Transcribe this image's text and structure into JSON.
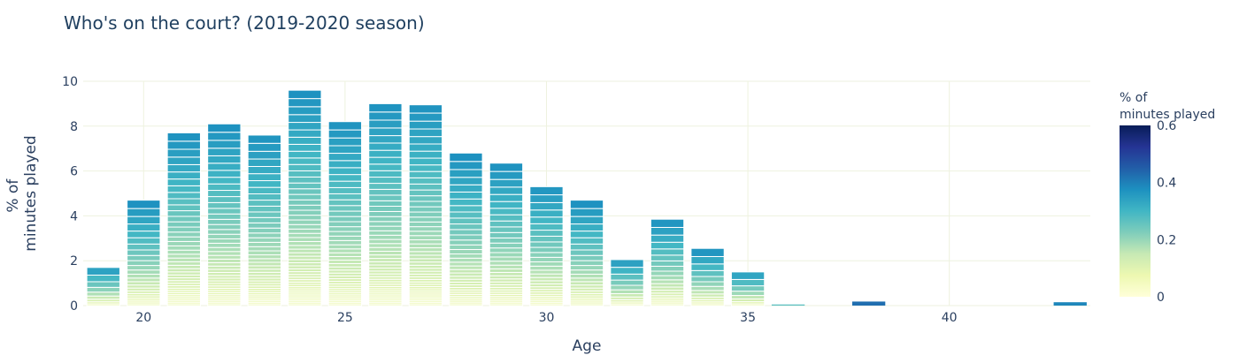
{
  "chart_data": {
    "type": "bar",
    "stacked": true,
    "title": "Who's on the court? (2019-2020 season)",
    "xlabel": "Age",
    "ylabel": [
      "% of",
      "minutes played"
    ],
    "xlim": [
      18.5,
      43.5
    ],
    "ylim": [
      0,
      10
    ],
    "xticks": [
      20,
      25,
      30,
      35,
      40
    ],
    "yticks": [
      0,
      2,
      4,
      6,
      8,
      10
    ],
    "grid": true,
    "ages": [
      19,
      20,
      21,
      22,
      23,
      24,
      25,
      26,
      27,
      28,
      29,
      30,
      31,
      32,
      33,
      34,
      35,
      36,
      38,
      43
    ],
    "totals": [
      1.7,
      4.7,
      7.7,
      8.1,
      7.6,
      9.6,
      8.2,
      9.0,
      8.95,
      6.8,
      6.35,
      5.3,
      4.7,
      2.05,
      3.85,
      2.55,
      1.5,
      0.05,
      0.18,
      0.15
    ],
    "colorbar": {
      "title": [
        "% of",
        "minutes played"
      ],
      "range": [
        0,
        0.6
      ],
      "ticks": [
        0,
        0.2,
        0.4,
        0.6
      ],
      "colorscale": [
        "#ffffd9",
        "#edf8b1",
        "#c7e9b4",
        "#7fcdbb",
        "#41b6c4",
        "#1d91c0",
        "#225ea8",
        "#253494",
        "#081d58"
      ]
    }
  }
}
